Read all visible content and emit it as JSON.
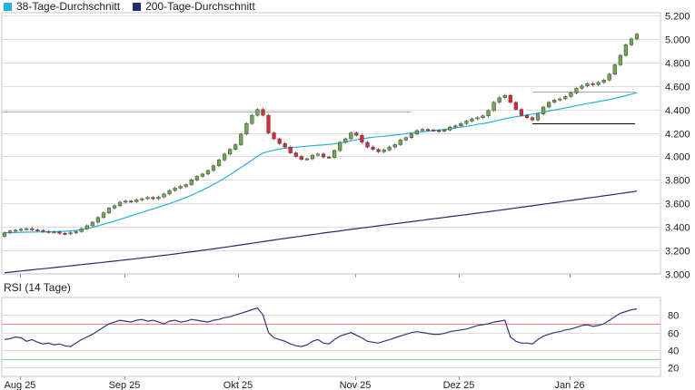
{
  "legend": {
    "items": [
      {
        "label": "38-Tage-Durchschnitt",
        "color": "#29aee0"
      },
      {
        "label": "200-Tage-Durchschnitt",
        "color": "#1f2f6b"
      }
    ]
  },
  "colors": {
    "up_candle": "#6fa84f",
    "down_candle": "#e0263d",
    "ma38": "#29aee0",
    "ma200": "#1f2f6b",
    "rsi_line": "#2a3d7a",
    "rsi_upper": "#f08080",
    "rsi_lower": "#8fd18f",
    "grid": "#dddddd"
  },
  "chart_data": [
    {
      "type": "candlestick",
      "x_axis_labels": [
        "Aug 25",
        "Sep 25",
        "Okt 25",
        "Nov 25",
        "Dez 25",
        "Jan 26"
      ],
      "y_ticks": [
        3000,
        3200,
        3400,
        3600,
        3800,
        4000,
        4200,
        4400,
        4600,
        4800,
        5000,
        5200
      ],
      "y_tick_labels": [
        "3.000",
        "3.200",
        "3.400",
        "3.600",
        "3.800",
        "4.000",
        "4.200",
        "4.400",
        "4.600",
        "4.800",
        "5.000",
        "5.200"
      ],
      "ylim": [
        3000,
        5200
      ],
      "grid": true,
      "legend_position": "top-left",
      "close": [
        3350,
        3365,
        3372,
        3380,
        3385,
        3375,
        3370,
        3362,
        3355,
        3358,
        3345,
        3340,
        3350,
        3360,
        3385,
        3410,
        3440,
        3480,
        3520,
        3560,
        3580,
        3610,
        3620,
        3615,
        3630,
        3640,
        3650,
        3640,
        3655,
        3680,
        3710,
        3730,
        3745,
        3760,
        3800,
        3830,
        3850,
        3880,
        3920,
        3970,
        4020,
        4060,
        4100,
        4190,
        4280,
        4350,
        4400,
        4350,
        4200,
        4150,
        4110,
        4080,
        4030,
        4000,
        3975,
        3980,
        4010,
        4020,
        3995,
        3990,
        4050,
        4120,
        4150,
        4200,
        4180,
        4120,
        4080,
        4060,
        4040,
        4055,
        4080,
        4100,
        4140,
        4160,
        4190,
        4220,
        4230,
        4225,
        4220,
        4215,
        4225,
        4250,
        4260,
        4280,
        4300,
        4320,
        4330,
        4345,
        4390,
        4460,
        4500,
        4520,
        4460,
        4400,
        4350,
        4330,
        4310,
        4360,
        4420,
        4460,
        4480,
        4490,
        4510,
        4540,
        4580,
        4600,
        4620,
        4610,
        4630,
        4650,
        4700,
        4780,
        4860,
        4950,
        5000,
        5040
      ],
      "ma38": [
        3350,
        3351,
        3352,
        3354,
        3355,
        3356,
        3357,
        3357,
        3358,
        3360,
        3361,
        3363,
        3366,
        3370,
        3377,
        3386,
        3397,
        3409,
        3422,
        3436,
        3450,
        3464,
        3479,
        3494,
        3509,
        3524,
        3539,
        3553,
        3568,
        3583,
        3599,
        3615,
        3632,
        3650,
        3670,
        3691,
        3713,
        3736,
        3761,
        3787,
        3815,
        3844,
        3874,
        3905,
        3937,
        3969,
        4002,
        4029,
        4041,
        4053,
        4063,
        4070,
        4076,
        4078,
        4083,
        4087,
        4091,
        4095,
        4098,
        4102,
        4108,
        4115,
        4122,
        4132,
        4142,
        4149,
        4157,
        4163,
        4168,
        4172,
        4177,
        4182,
        4187,
        4194,
        4200,
        4205,
        4210,
        4215,
        4220,
        4225,
        4230,
        4236,
        4243,
        4250,
        4257,
        4264,
        4272,
        4279,
        4288,
        4298,
        4309,
        4320,
        4330,
        4338,
        4345,
        4353,
        4360,
        4368,
        4377,
        4386,
        4395,
        4404,
        4413,
        4422,
        4432,
        4441,
        4450,
        4458,
        4467,
        4475,
        4484,
        4494,
        4505,
        4517,
        4530,
        4544
      ],
      "ma200": [
        3010,
        3015,
        3020,
        3025,
        3030,
        3035,
        3040,
        3044,
        3049,
        3054,
        3059,
        3064,
        3069,
        3074,
        3079,
        3084,
        3089,
        3094,
        3099,
        3104,
        3109,
        3114,
        3120,
        3125,
        3130,
        3136,
        3141,
        3147,
        3153,
        3158,
        3164,
        3170,
        3176,
        3182,
        3188,
        3194,
        3201,
        3207,
        3213,
        3220,
        3226,
        3233,
        3240,
        3247,
        3254,
        3261,
        3268,
        3275,
        3282,
        3289,
        3296,
        3302,
        3309,
        3315,
        3322,
        3328,
        3335,
        3341,
        3348,
        3354,
        3360,
        3366,
        3373,
        3379,
        3385,
        3391,
        3397,
        3403,
        3409,
        3415,
        3421,
        3427,
        3433,
        3439,
        3445,
        3451,
        3457,
        3463,
        3469,
        3475,
        3481,
        3487,
        3493,
        3499,
        3505,
        3511,
        3517,
        3523,
        3529,
        3536,
        3542,
        3548,
        3555,
        3561,
        3567,
        3574,
        3580,
        3587,
        3593,
        3600,
        3606,
        3612,
        3619,
        3625,
        3632,
        3638,
        3645,
        3651,
        3658,
        3665,
        3671,
        3678,
        3685,
        3691,
        3698,
        3705
      ],
      "reference_lines": [
        {
          "level": 4380,
          "color": "#aaaaaa"
        },
        {
          "level": 4550,
          "color": "#aaaaaa"
        },
        {
          "level": 4280,
          "color": "#000000"
        }
      ]
    },
    {
      "type": "line",
      "title": "RSI (14 Tage)",
      "y_ticks": [
        20,
        40,
        60,
        80
      ],
      "y_tick_labels": [
        "20",
        "40",
        "60",
        "80"
      ],
      "ylim": [
        10,
        100
      ],
      "upper_band": 70,
      "lower_band": 30,
      "values": [
        52,
        53,
        55,
        54,
        50,
        52,
        49,
        47,
        48,
        46,
        47,
        45,
        44,
        48,
        52,
        55,
        58,
        62,
        66,
        70,
        72,
        74,
        73,
        72,
        74,
        75,
        73,
        74,
        72,
        70,
        73,
        74,
        72,
        73,
        75,
        74,
        73,
        72,
        74,
        75,
        77,
        78,
        80,
        82,
        84,
        86,
        88,
        80,
        60,
        54,
        52,
        50,
        47,
        45,
        44,
        46,
        50,
        52,
        48,
        47,
        52,
        56,
        58,
        60,
        57,
        54,
        50,
        49,
        48,
        50,
        52,
        54,
        56,
        58,
        60,
        61,
        60,
        59,
        58,
        58,
        59,
        61,
        62,
        63,
        64,
        66,
        68,
        69,
        70,
        72,
        73,
        74,
        55,
        50,
        48,
        48,
        47,
        52,
        56,
        58,
        60,
        61,
        63,
        64,
        66,
        68,
        69,
        67,
        68,
        70,
        74,
        78,
        82,
        84,
        86,
        87
      ]
    }
  ]
}
